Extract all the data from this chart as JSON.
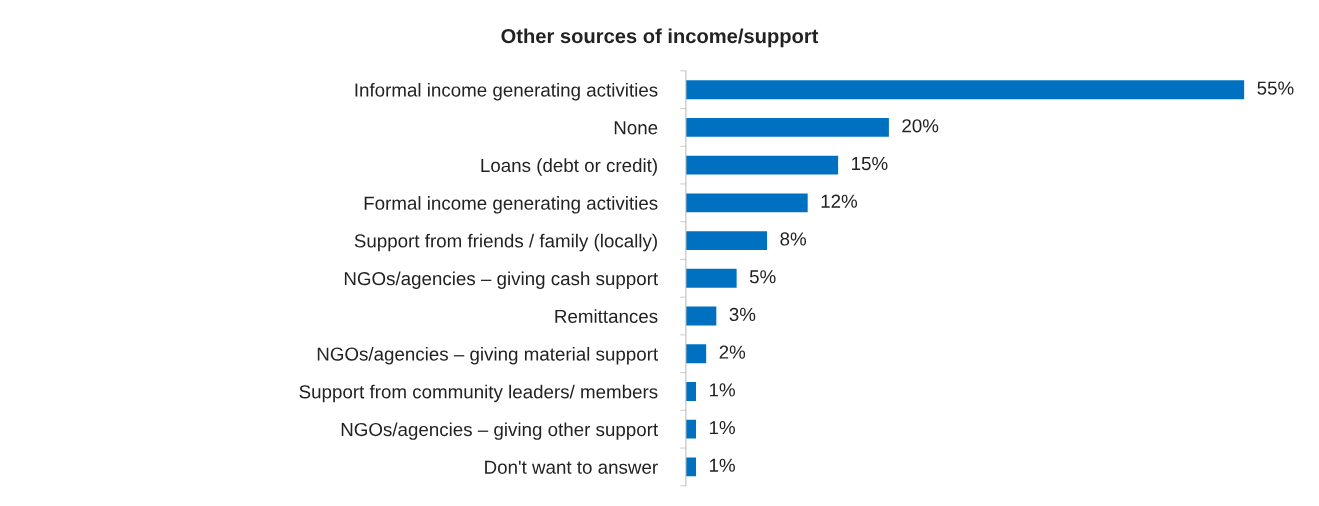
{
  "chart_data": {
    "type": "bar",
    "orientation": "horizontal",
    "title": "Other sources of income/support",
    "categories": [
      "Informal income generating activities",
      "None",
      "Loans (debt or credit)",
      "Formal income generating activities",
      "Support from friends / family (locally)",
      "NGOs/agencies – giving cash support",
      "Remittances",
      "NGOs/agencies – giving material support",
      "Support from community leaders/ members",
      "NGOs/agencies – giving other support",
      "Don't want to answer"
    ],
    "values": [
      55,
      20,
      15,
      12,
      8,
      5,
      3,
      2,
      1,
      1,
      1
    ],
    "value_labels": [
      "55%",
      "20%",
      "15%",
      "12%",
      "8%",
      "5%",
      "3%",
      "2%",
      "1%",
      "1%",
      "1%"
    ],
    "color": "#0070c0",
    "grid": false,
    "legend": false
  }
}
